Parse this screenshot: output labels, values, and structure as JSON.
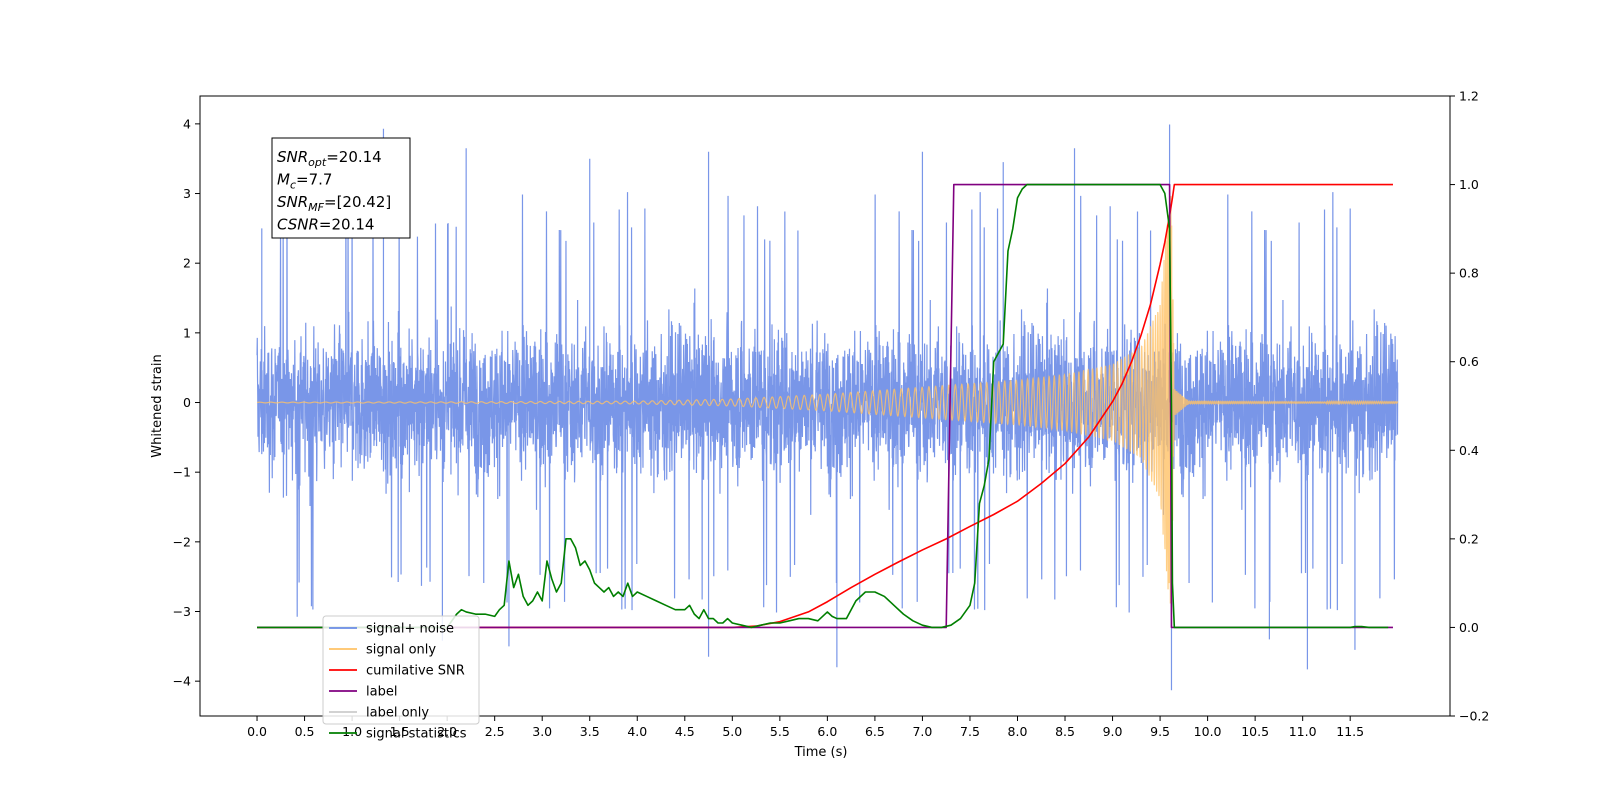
{
  "chart_data": {
    "type": "line",
    "title": "",
    "xlabel": "Time (s)",
    "ylabel": "Whitened strain",
    "xlim": [
      -0.6,
      12.55
    ],
    "ylim": [
      -4.5,
      4.4
    ],
    "y2lim": [
      -0.2,
      1.2
    ],
    "grid": false,
    "legend_position": "lower-left",
    "x_ticks": [
      "0.0",
      "0.5",
      "1.0",
      "1.5",
      "2.0",
      "2.5",
      "3.0",
      "3.5",
      "4.0",
      "4.5",
      "5.0",
      "5.5",
      "6.0",
      "6.5",
      "7.0",
      "7.5",
      "8.0",
      "8.5",
      "9.0",
      "9.5",
      "10.0",
      "10.5",
      "11.0",
      "11.5"
    ],
    "y_ticks": [
      "4",
      "3",
      "2",
      "1",
      "0",
      "−1",
      "−2",
      "−3",
      "−4"
    ],
    "y2_ticks": [
      "1.2",
      "1.0",
      "0.8",
      "0.6",
      "0.4",
      "0.2",
      "0.0",
      "−0.2"
    ],
    "annotation": {
      "lines": [
        {
          "sym": "SNR",
          "sub": "opt",
          "value": "=20.14"
        },
        {
          "sym": "M",
          "sub": "c",
          "value": "=7.7"
        },
        {
          "sym": "SNR",
          "sub": "MF",
          "value": "=[20.42]"
        },
        {
          "sym": "CSNR",
          "sub": "",
          "value": "=20.14"
        }
      ]
    },
    "series": [
      {
        "name": "signal+ noise",
        "color": "#6a8be6",
        "axis": "left",
        "kind": "noise",
        "x_range": [
          0.0,
          12.0
        ],
        "typical_range": [
          -2.0,
          2.3
        ],
        "spikes": [
          [
            0.05,
            2.5
          ],
          [
            1.33,
            3.93
          ],
          [
            2.2,
            3.65
          ],
          [
            3.5,
            3.5
          ],
          [
            4.75,
            3.6
          ],
          [
            7.0,
            3.6
          ],
          [
            7.85,
            3.45
          ],
          [
            8.6,
            3.65
          ],
          [
            9.6,
            3.99
          ],
          [
            1.95,
            -3.42
          ],
          [
            2.65,
            -3.5
          ],
          [
            4.75,
            -3.65
          ],
          [
            6.1,
            -3.8
          ],
          [
            9.62,
            -4.13
          ],
          [
            10.65,
            -3.4
          ],
          [
            11.05,
            -3.83
          ],
          [
            11.55,
            -3.55
          ]
        ]
      },
      {
        "name": "signal only",
        "color": "#ffc266",
        "axis": "left",
        "kind": "chirp",
        "x_range": [
          0.0,
          12.0
        ],
        "merger_time": 9.62,
        "peak_amplitude": 3.0,
        "amplitude_points": [
          [
            0.0,
            0.005
          ],
          [
            2.0,
            0.01
          ],
          [
            4.0,
            0.02
          ],
          [
            5.0,
            0.05
          ],
          [
            6.0,
            0.12
          ],
          [
            7.0,
            0.22
          ],
          [
            8.0,
            0.32
          ],
          [
            8.5,
            0.4
          ],
          [
            9.0,
            0.55
          ],
          [
            9.3,
            0.8
          ],
          [
            9.5,
            1.4
          ],
          [
            9.6,
            2.95
          ],
          [
            9.62,
            3.0
          ],
          [
            9.65,
            0.2
          ],
          [
            9.8,
            0.02
          ],
          [
            12.0,
            0.005
          ]
        ]
      },
      {
        "name": "cumilative SNR",
        "color": "#ff0000",
        "axis": "right",
        "x": [
          0.0,
          5.0,
          5.25,
          5.5,
          5.8,
          6.0,
          6.25,
          6.5,
          6.75,
          7.0,
          7.25,
          7.5,
          7.75,
          8.0,
          8.25,
          8.5,
          8.75,
          9.0,
          9.1,
          9.2,
          9.3,
          9.4,
          9.5,
          9.55,
          9.6,
          9.63,
          9.65,
          11.95
        ],
        "y": [
          0.0,
          0.0,
          0.003,
          0.013,
          0.035,
          0.058,
          0.09,
          0.12,
          0.148,
          0.175,
          0.2,
          0.228,
          0.255,
          0.285,
          0.325,
          0.37,
          0.43,
          0.51,
          0.55,
          0.6,
          0.66,
          0.73,
          0.82,
          0.87,
          0.93,
          0.97,
          1.0,
          1.0
        ]
      },
      {
        "name": "label",
        "color": "#800080",
        "axis": "right",
        "x": [
          0.0,
          7.25,
          7.33,
          9.6,
          9.62,
          11.95
        ],
        "y": [
          0.0,
          0.0,
          1.0,
          1.0,
          0.0,
          0.0
        ]
      },
      {
        "name": "label only",
        "color": "#cccccc",
        "axis": "right",
        "x": [],
        "y": []
      },
      {
        "name": "signal statistics",
        "color": "#007f00",
        "axis": "right",
        "x": [
          0.0,
          0.1,
          0.15,
          2.0,
          2.1,
          2.15,
          2.2,
          2.3,
          2.4,
          2.5,
          2.55,
          2.6,
          2.65,
          2.7,
          2.75,
          2.8,
          2.85,
          2.9,
          2.95,
          3.0,
          3.05,
          3.1,
          3.15,
          3.2,
          3.25,
          3.3,
          3.35,
          3.4,
          3.45,
          3.5,
          3.55,
          3.6,
          3.65,
          3.7,
          3.75,
          3.8,
          3.85,
          3.9,
          3.95,
          4.0,
          4.1,
          4.2,
          4.3,
          4.4,
          4.5,
          4.55,
          4.6,
          4.65,
          4.7,
          4.75,
          4.8,
          4.85,
          4.9,
          4.95,
          5.0,
          5.1,
          5.2,
          5.3,
          5.4,
          5.5,
          5.6,
          5.7,
          5.8,
          5.9,
          6.0,
          6.05,
          6.1,
          6.2,
          6.3,
          6.4,
          6.5,
          6.6,
          6.7,
          6.8,
          6.9,
          7.0,
          7.1,
          7.2,
          7.3,
          7.4,
          7.5,
          7.55,
          7.6,
          7.65,
          7.7,
          7.75,
          7.8,
          7.85,
          7.9,
          7.95,
          8.0,
          8.05,
          8.1,
          8.2,
          8.3,
          8.35,
          9.5,
          9.55,
          9.6,
          9.62,
          9.63,
          9.65,
          9.7,
          11.5,
          11.55,
          11.62,
          11.7,
          11.9
        ],
        "y": [
          0.0,
          0.0,
          0.0,
          0.0,
          0.03,
          0.04,
          0.035,
          0.03,
          0.03,
          0.025,
          0.04,
          0.05,
          0.15,
          0.09,
          0.12,
          0.07,
          0.05,
          0.06,
          0.08,
          0.06,
          0.15,
          0.11,
          0.08,
          0.1,
          0.2,
          0.2,
          0.18,
          0.14,
          0.15,
          0.13,
          0.1,
          0.09,
          0.08,
          0.09,
          0.07,
          0.08,
          0.07,
          0.1,
          0.07,
          0.08,
          0.07,
          0.06,
          0.05,
          0.04,
          0.04,
          0.05,
          0.03,
          0.02,
          0.04,
          0.02,
          0.02,
          0.01,
          0.01,
          0.02,
          0.01,
          0.005,
          0.0,
          0.005,
          0.01,
          0.01,
          0.015,
          0.02,
          0.02,
          0.015,
          0.035,
          0.025,
          0.02,
          0.02,
          0.06,
          0.08,
          0.08,
          0.07,
          0.05,
          0.03,
          0.015,
          0.005,
          0.0,
          0.0,
          0.005,
          0.02,
          0.05,
          0.1,
          0.28,
          0.32,
          0.38,
          0.6,
          0.62,
          0.64,
          0.85,
          0.9,
          0.97,
          0.99,
          1.0,
          1.0,
          1.0,
          1.0,
          1.0,
          0.98,
          0.9,
          0.5,
          0.1,
          0.0,
          0.0,
          0.0,
          0.002,
          0.002,
          0.0,
          0.0
        ]
      }
    ]
  }
}
